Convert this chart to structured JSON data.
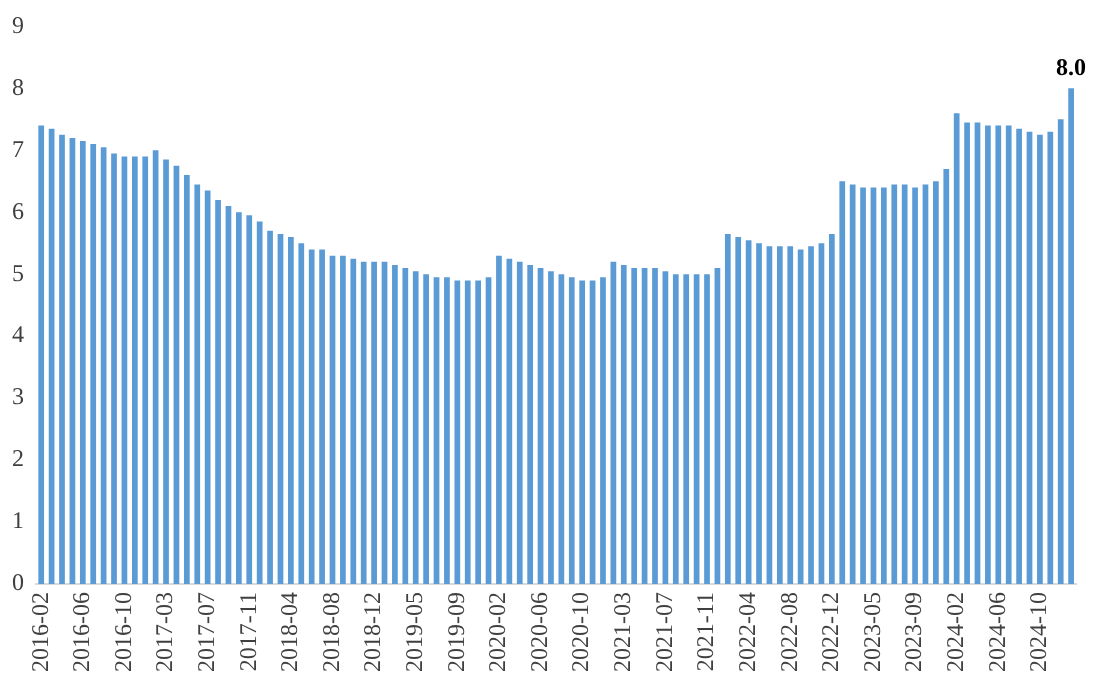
{
  "chart_data": {
    "type": "bar",
    "categories": [
      "2016-02",
      null,
      null,
      null,
      "2016-06",
      null,
      null,
      null,
      "2016-10",
      null,
      null,
      null,
      "2017-03",
      null,
      null,
      null,
      "2017-07",
      null,
      null,
      null,
      "2017-11",
      null,
      null,
      null,
      "2018-04",
      null,
      null,
      null,
      "2018-08",
      null,
      null,
      null,
      "2018-12",
      null,
      null,
      null,
      "2019-05",
      null,
      null,
      null,
      "2019-09",
      null,
      null,
      null,
      "2020-02",
      null,
      null,
      null,
      "2020-06",
      null,
      null,
      null,
      "2020-10",
      null,
      null,
      null,
      "2021-03",
      null,
      null,
      null,
      "2021-07",
      null,
      null,
      null,
      "2021-11",
      null,
      null,
      null,
      "2022-04",
      null,
      null,
      null,
      "2022-08",
      null,
      null,
      null,
      "2022-12",
      null,
      null,
      null,
      "2023-05",
      null,
      null,
      null,
      "2023-09",
      null,
      null,
      null,
      "2024-02",
      null,
      null,
      null,
      "2024-06",
      null,
      null,
      null,
      "2024-10",
      null,
      null,
      null
    ],
    "values": [
      7.4,
      7.35,
      7.25,
      7.2,
      7.15,
      7.1,
      7.05,
      6.95,
      6.9,
      6.9,
      6.9,
      7.0,
      6.85,
      6.75,
      6.6,
      6.45,
      6.35,
      6.2,
      6.1,
      6.0,
      5.95,
      5.85,
      5.7,
      5.65,
      5.6,
      5.5,
      5.4,
      5.4,
      5.3,
      5.3,
      5.25,
      5.2,
      5.2,
      5.2,
      5.15,
      5.1,
      5.05,
      5.0,
      4.95,
      4.95,
      4.9,
      4.9,
      4.9,
      4.95,
      5.3,
      5.25,
      5.2,
      5.15,
      5.1,
      5.05,
      5.0,
      4.95,
      4.9,
      4.9,
      4.95,
      5.2,
      5.15,
      5.1,
      5.1,
      5.1,
      5.05,
      5.0,
      5.0,
      5.0,
      5.0,
      5.1,
      5.65,
      5.6,
      5.55,
      5.5,
      5.45,
      5.45,
      5.45,
      5.4,
      5.45,
      5.5,
      5.65,
      6.5,
      6.45,
      6.4,
      6.4,
      6.4,
      6.45,
      6.45,
      6.4,
      6.45,
      6.5,
      6.7,
      7.6,
      7.45,
      7.45,
      7.4,
      7.4,
      7.4,
      7.35,
      7.3,
      7.25,
      7.3,
      7.5,
      8.0
    ],
    "value_labels": [
      null,
      null,
      null,
      null,
      null,
      null,
      null,
      null,
      null,
      null,
      null,
      null,
      null,
      null,
      null,
      null,
      null,
      null,
      null,
      null,
      null,
      null,
      null,
      null,
      null,
      null,
      null,
      null,
      null,
      null,
      null,
      null,
      null,
      null,
      null,
      null,
      null,
      null,
      null,
      null,
      null,
      null,
      null,
      null,
      null,
      null,
      null,
      null,
      null,
      null,
      null,
      null,
      null,
      null,
      null,
      null,
      null,
      null,
      null,
      null,
      null,
      null,
      null,
      null,
      null,
      null,
      null,
      null,
      null,
      null,
      null,
      null,
      null,
      null,
      null,
      null,
      null,
      null,
      null,
      null,
      null,
      null,
      null,
      null,
      null,
      null,
      null,
      null,
      null,
      null,
      null,
      null,
      null,
      null,
      null,
      null,
      null,
      null,
      null,
      "8.0"
    ],
    "color": "#5b9bd5",
    "ylim": [
      0,
      9
    ],
    "yticks": [
      0,
      1,
      2,
      3,
      4,
      5,
      6,
      7,
      8,
      9
    ],
    "grid": false,
    "legend": false
  }
}
